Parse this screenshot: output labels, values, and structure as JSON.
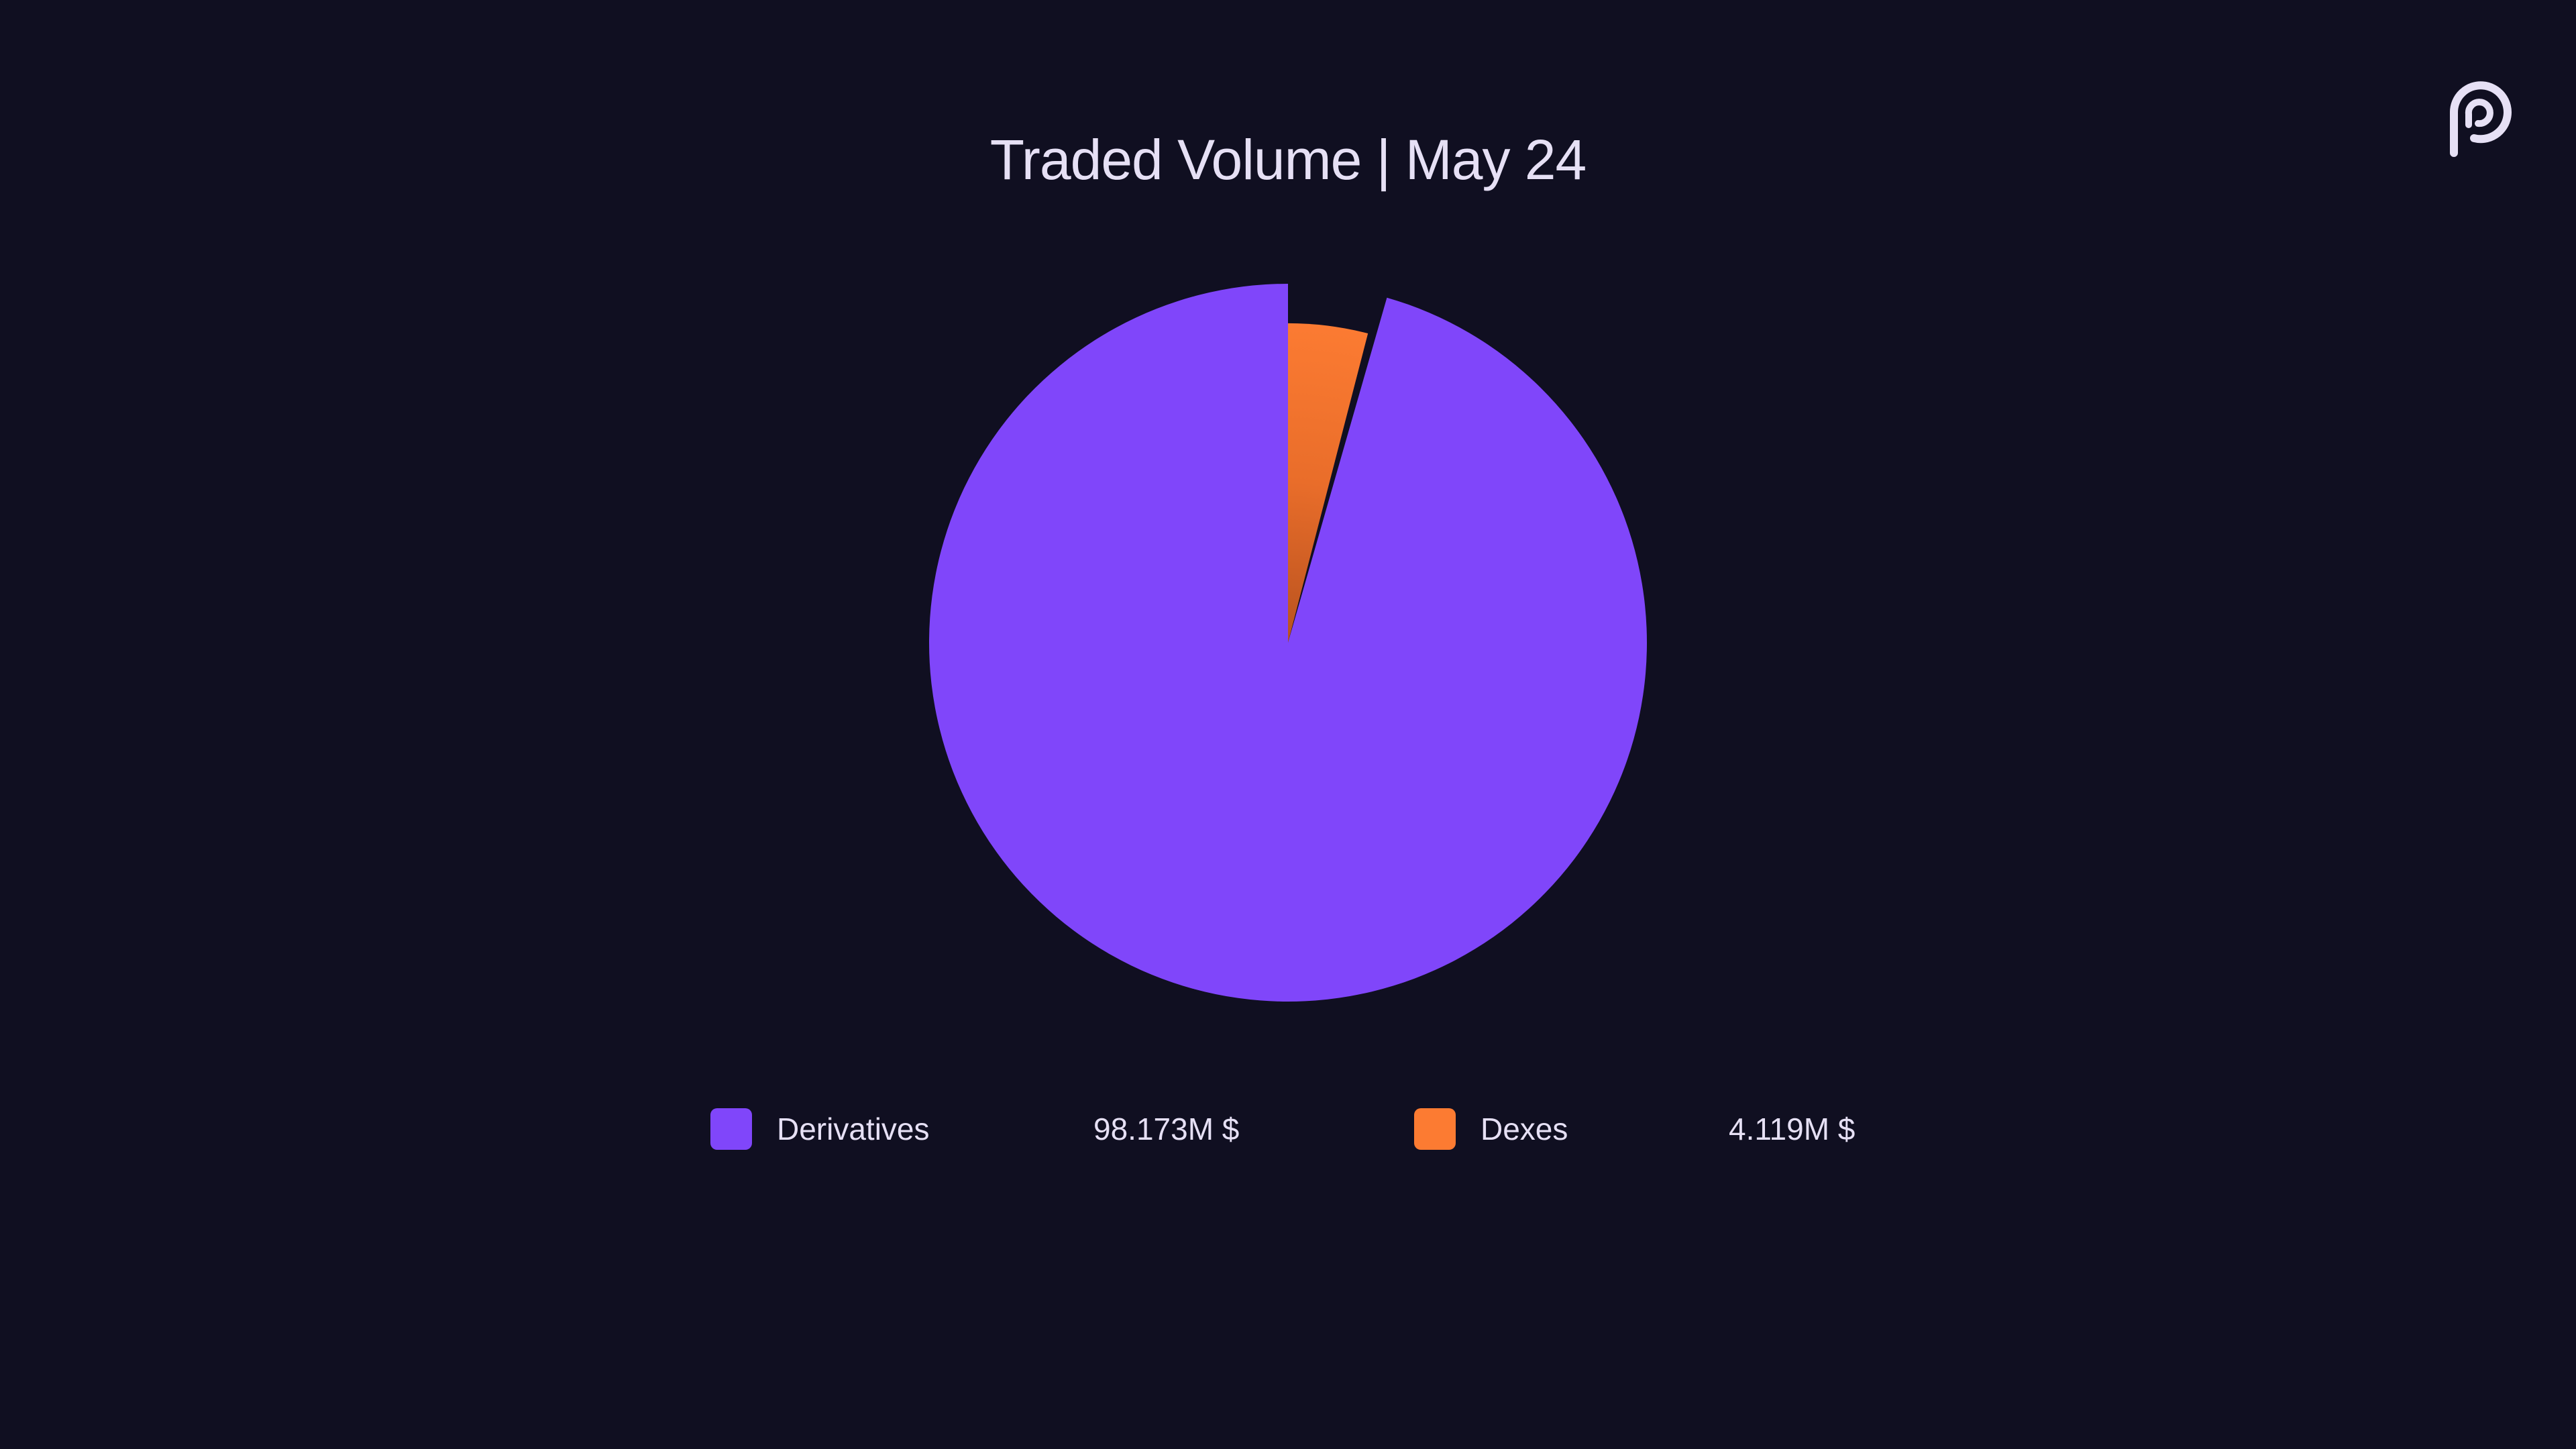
{
  "title": "Traded Volume | May 24",
  "logo": {
    "icon": "pyth-logo-icon"
  },
  "colors": {
    "background": "#100f21",
    "text": "#e6e0f5"
  },
  "legend": [
    {
      "label": "Derivatives",
      "value_text": "98.173M $",
      "color": "#8046fa"
    },
    {
      "label": "Dexes",
      "value_text": "4.119M $",
      "color": "#fc7b32"
    }
  ],
  "chart_data": {
    "type": "pie",
    "title": "Traded Volume | May 24",
    "start_angle": "top",
    "direction": "clockwise",
    "legend_position": "bottom",
    "slices": [
      {
        "label": "Dexes",
        "value": 4.119,
        "unit": "M $",
        "color": "#fc7b32",
        "exploded": true
      },
      {
        "label": "Derivatives",
        "value": 98.173,
        "unit": "M $",
        "color": "#8046fa",
        "exploded": false
      }
    ]
  }
}
